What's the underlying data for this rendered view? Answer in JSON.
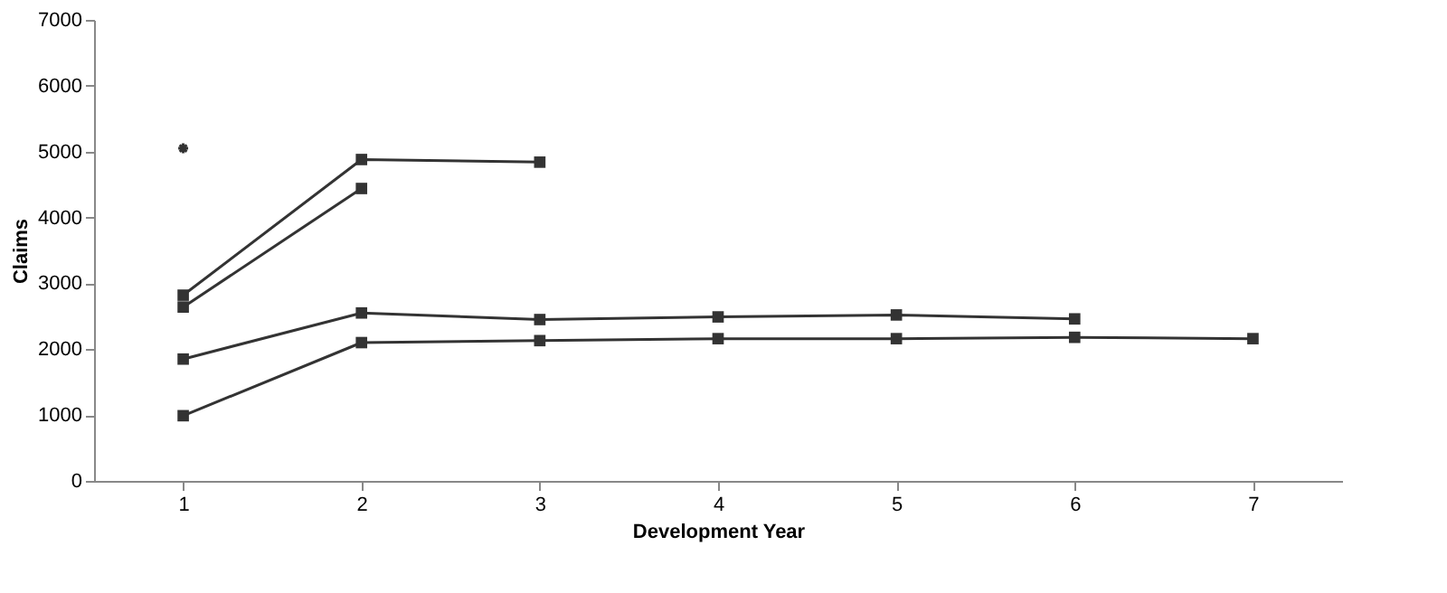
{
  "chart_data": {
    "type": "line",
    "xlabel": "Development Year",
    "ylabel": "Claims",
    "categories": [
      "1",
      "2",
      "3",
      "4",
      "5",
      "6",
      "7"
    ],
    "series": [
      {
        "color": "#333333",
        "marker": "square",
        "values": [
          2820,
          4880,
          4840,
          null,
          null,
          null,
          null
        ]
      },
      {
        "color": "#333333",
        "marker": "square",
        "values": [
          2640,
          4440,
          null,
          null,
          null,
          null,
          null
        ]
      },
      {
        "color": "#333333",
        "marker": "square",
        "values": [
          1850,
          2550,
          2450,
          2490,
          2520,
          2460,
          null
        ]
      },
      {
        "color": "#333333",
        "marker": "square",
        "values": [
          990,
          2100,
          2130,
          2160,
          2160,
          2180,
          2160
        ]
      },
      {
        "color": "#333333",
        "marker": "cross",
        "values": [
          5050,
          null,
          null,
          null,
          null,
          null,
          null
        ]
      }
    ],
    "ylim": [
      0,
      7000
    ],
    "yticks": [
      0,
      1000,
      2000,
      3000,
      4000,
      5000,
      6000,
      7000
    ],
    "grid": false,
    "line_style": "solid"
  }
}
